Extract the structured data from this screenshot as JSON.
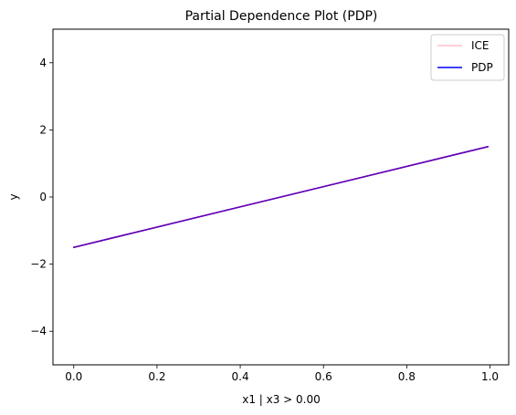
{
  "chart_data": {
    "type": "line",
    "title": "Partial Dependence Plot (PDP)",
    "xlabel": "x1 | x3 > 0.00",
    "ylabel": "y",
    "xlim": [
      -0.05,
      1.045
    ],
    "ylim": [
      -5,
      5
    ],
    "xticks": [
      0.0,
      0.2,
      0.4,
      0.6,
      0.8,
      1.0
    ],
    "xtick_labels": [
      "0.0",
      "0.2",
      "0.4",
      "0.6",
      "0.8",
      "1.0"
    ],
    "yticks": [
      -4,
      -2,
      0,
      2,
      4
    ],
    "ytick_labels": [
      "−4",
      "−2",
      "0",
      "2",
      "4"
    ],
    "grid": false,
    "legend": {
      "position": "top-right",
      "entries": [
        "ICE",
        "PDP"
      ]
    },
    "series": [
      {
        "name": "ICE",
        "color": "#ffc0cb",
        "x": [
          0.0,
          0.995
        ],
        "y": [
          -1.5,
          1.5
        ]
      },
      {
        "name": "PDP",
        "color": "#0000ff",
        "x": [
          0.0,
          0.995
        ],
        "y": [
          -1.5,
          1.5
        ]
      }
    ],
    "overlay_color": "#6a00b0"
  }
}
